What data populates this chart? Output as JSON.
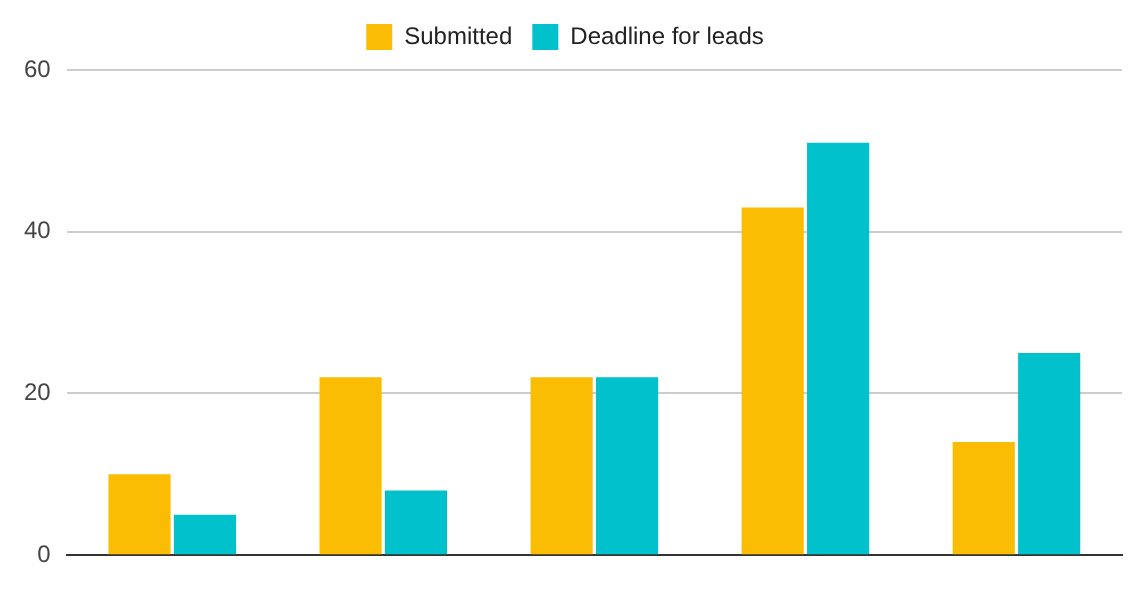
{
  "chart_data": {
    "type": "bar",
    "categories": [
      null,
      null,
      null,
      null,
      null
    ],
    "series": [
      {
        "name": "Submitted",
        "color": "#fbbc04",
        "values": [
          10,
          22,
          22,
          43,
          14
        ]
      },
      {
        "name": "Deadline for leads",
        "color": "#00c1cc",
        "values": [
          5,
          8,
          22,
          51,
          25
        ]
      }
    ],
    "ylim": [
      0,
      60
    ],
    "yticks": [
      0,
      20,
      40,
      60
    ],
    "grid": "y",
    "legend": "top"
  }
}
